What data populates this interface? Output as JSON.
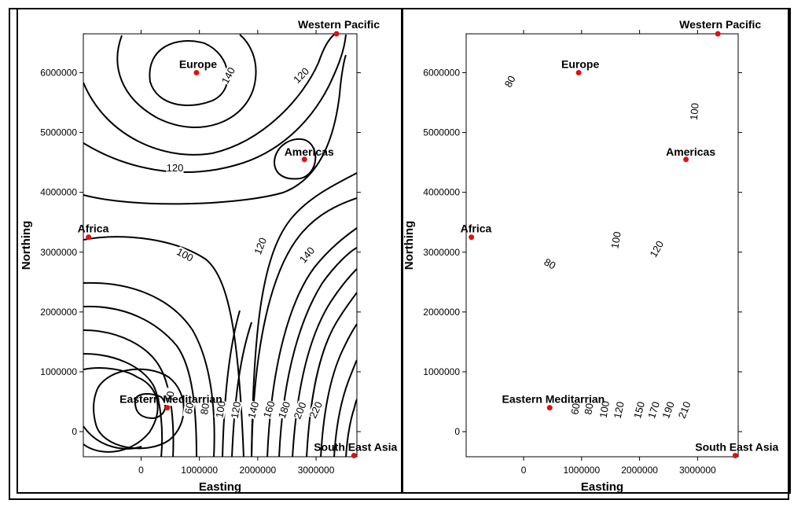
{
  "chart_data": [
    {
      "type": "contour",
      "xlabel": "Easting",
      "ylabel": "Northing",
      "xlim": [
        -990000,
        3700000
      ],
      "ylim": [
        -420000,
        6650000
      ],
      "xticks": [
        0,
        1000000,
        2000000,
        3000000
      ],
      "yticks": [
        0,
        1000000,
        2000000,
        3000000,
        4000000,
        5000000,
        6000000
      ],
      "xtick_labels": [
        "0",
        "1000000",
        "2000000",
        "3000000"
      ],
      "ytick_labels": [
        "0",
        "1000000",
        "2000000",
        "3000000",
        "4000000",
        "5000000",
        "6000000"
      ],
      "sites": [
        {
          "name": "Europe",
          "x": 950000,
          "y": 6000000
        },
        {
          "name": "Western Pacific",
          "x": 3350000,
          "y": 6650000
        },
        {
          "name": "Americas",
          "x": 2800000,
          "y": 4550000
        },
        {
          "name": "Africa",
          "x": -900000,
          "y": 3250000
        },
        {
          "name": "Eastern Meditarrian",
          "x": 450000,
          "y": 400000
        },
        {
          "name": "South East Asia",
          "x": 3650000,
          "y": -400000
        }
      ],
      "contour_labels": [
        {
          "text": "140",
          "x": 1500000,
          "y": 5950000,
          "rot": -62
        },
        {
          "text": "120",
          "x": 2750000,
          "y": 5950000,
          "rot": -45
        },
        {
          "text": "120",
          "x": 580000,
          "y": 4400000,
          "rot": 0
        },
        {
          "text": "100",
          "x": 750000,
          "y": 2950000,
          "rot": 28
        },
        {
          "text": "120",
          "x": 2050000,
          "y": 3100000,
          "rot": -68
        },
        {
          "text": "140",
          "x": 2850000,
          "y": 2950000,
          "rot": -50
        },
        {
          "text": "40",
          "x": 500000,
          "y": 580000,
          "rot": -80
        },
        {
          "text": "60",
          "x": 830000,
          "y": 390000,
          "rot": -80
        },
        {
          "text": "80",
          "x": 1100000,
          "y": 380000,
          "rot": -80
        },
        {
          "text": "100",
          "x": 1370000,
          "y": 370000,
          "rot": -80
        },
        {
          "text": "120",
          "x": 1630000,
          "y": 360000,
          "rot": -80
        },
        {
          "text": "140",
          "x": 1930000,
          "y": 360000,
          "rot": -75
        },
        {
          "text": "160",
          "x": 2200000,
          "y": 370000,
          "rot": -72
        },
        {
          "text": "180",
          "x": 2460000,
          "y": 360000,
          "rot": -70
        },
        {
          "text": "200",
          "x": 2730000,
          "y": 350000,
          "rot": -68
        },
        {
          "text": "220",
          "x": 3000000,
          "y": 360000,
          "rot": -65
        }
      ],
      "contour_levels": [
        40,
        60,
        80,
        100,
        120,
        140,
        160,
        180,
        200,
        220
      ]
    },
    {
      "type": "contour",
      "xlabel": "Easting",
      "ylabel": "Northing",
      "xlim": [
        -990000,
        3700000
      ],
      "ylim": [
        -420000,
        6650000
      ],
      "xticks": [
        0,
        1000000,
        2000000,
        3000000
      ],
      "yticks": [
        0,
        1000000,
        2000000,
        3000000,
        4000000,
        5000000,
        6000000
      ],
      "xtick_labels": [
        "0",
        "1000000",
        "2000000",
        "3000000"
      ],
      "ytick_labels": [
        "0",
        "1000000",
        "2000000",
        "3000000",
        "4000000",
        "5000000",
        "6000000"
      ],
      "sites": [
        {
          "name": "Europe",
          "x": 950000,
          "y": 6000000
        },
        {
          "name": "Western Pacific",
          "x": 3350000,
          "y": 6650000
        },
        {
          "name": "Americas",
          "x": 2800000,
          "y": 4550000
        },
        {
          "name": "Africa",
          "x": -900000,
          "y": 3250000
        },
        {
          "name": "Eastern Meditarrian",
          "x": 450000,
          "y": 400000
        },
        {
          "name": "South East Asia",
          "x": 3650000,
          "y": -400000
        }
      ],
      "contour_labels": [
        {
          "text": "80",
          "x": -230000,
          "y": 5850000,
          "rot": -62
        },
        {
          "text": "100",
          "x": 2950000,
          "y": 5350000,
          "rot": -85
        },
        {
          "text": "100",
          "x": 1600000,
          "y": 3200000,
          "rot": -80
        },
        {
          "text": "120",
          "x": 2300000,
          "y": 3050000,
          "rot": -60
        },
        {
          "text": "80",
          "x": 450000,
          "y": 2800000,
          "rot": 30
        },
        {
          "text": "60",
          "x": 900000,
          "y": 380000,
          "rot": -80
        },
        {
          "text": "80",
          "x": 1130000,
          "y": 380000,
          "rot": -80
        },
        {
          "text": "100",
          "x": 1400000,
          "y": 370000,
          "rot": -80
        },
        {
          "text": "120",
          "x": 1650000,
          "y": 360000,
          "rot": -78
        },
        {
          "text": "150",
          "x": 2000000,
          "y": 360000,
          "rot": -75
        },
        {
          "text": "170",
          "x": 2250000,
          "y": 360000,
          "rot": -72
        },
        {
          "text": "190",
          "x": 2500000,
          "y": 360000,
          "rot": -70
        },
        {
          "text": "210",
          "x": 2780000,
          "y": 360000,
          "rot": -68
        }
      ],
      "contour_levels": [
        60,
        80,
        100,
        120,
        150,
        170,
        190,
        210
      ]
    }
  ]
}
